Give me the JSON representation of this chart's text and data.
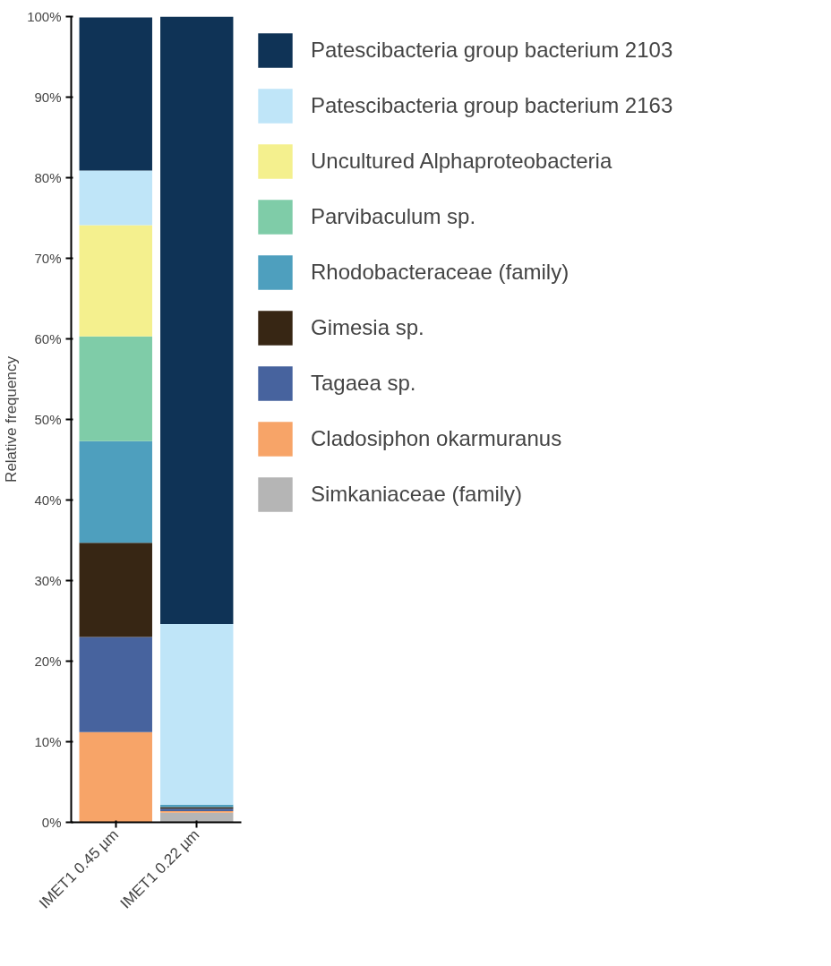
{
  "chart_data": {
    "type": "bar",
    "stacked": true,
    "ylabel": "Relative frequency",
    "categories": [
      "IMET1 0.45 µm",
      "IMET1 0.22 µm"
    ],
    "series": [
      {
        "name": "Simkaniaceae (family)",
        "color": "#b5b5b5",
        "values": [
          0,
          1.2
        ]
      },
      {
        "name": "Cladosiphon okarmuranus",
        "color": "#f7a468",
        "values": [
          11.2,
          0.2
        ]
      },
      {
        "name": "Tagaea sp.",
        "color": "#47639e",
        "values": [
          11.8,
          0.3
        ]
      },
      {
        "name": "Gimesia sp.",
        "color": "#372614",
        "values": [
          11.7,
          0.2
        ]
      },
      {
        "name": "Rhodobacteraceae (family)",
        "color": "#4e9fbe",
        "values": [
          12.6,
          0.3
        ]
      },
      {
        "name": "Parvibaculum sp.",
        "color": "#7fcca8",
        "values": [
          13.0,
          0
        ]
      },
      {
        "name": "Uncultured Alphaproteobacteria",
        "color": "#f4f08e",
        "values": [
          13.8,
          0
        ]
      },
      {
        "name": "Patescibacteria group bacterium 2163",
        "color": "#bfe5f8",
        "values": [
          6.8,
          22.4
        ]
      },
      {
        "name": "Patescibacteria group bacterium 2103",
        "color": "#0f3356",
        "values": [
          19.0,
          75.4
        ]
      }
    ],
    "ylim": [
      0,
      100
    ],
    "yticks": [
      {
        "value": 0,
        "label": "0%"
      },
      {
        "value": 10,
        "label": "10%"
      },
      {
        "value": 20,
        "label": "20%"
      },
      {
        "value": 30,
        "label": "30%"
      },
      {
        "value": 40,
        "label": "40%"
      },
      {
        "value": 50,
        "label": "50%"
      },
      {
        "value": 60,
        "label": "60%"
      },
      {
        "value": 70,
        "label": "70%"
      },
      {
        "value": 80,
        "label": "80%"
      },
      {
        "value": 90,
        "label": "90%"
      },
      {
        "value": 100,
        "label": "100%"
      }
    ],
    "grid": false,
    "legend": "right"
  }
}
